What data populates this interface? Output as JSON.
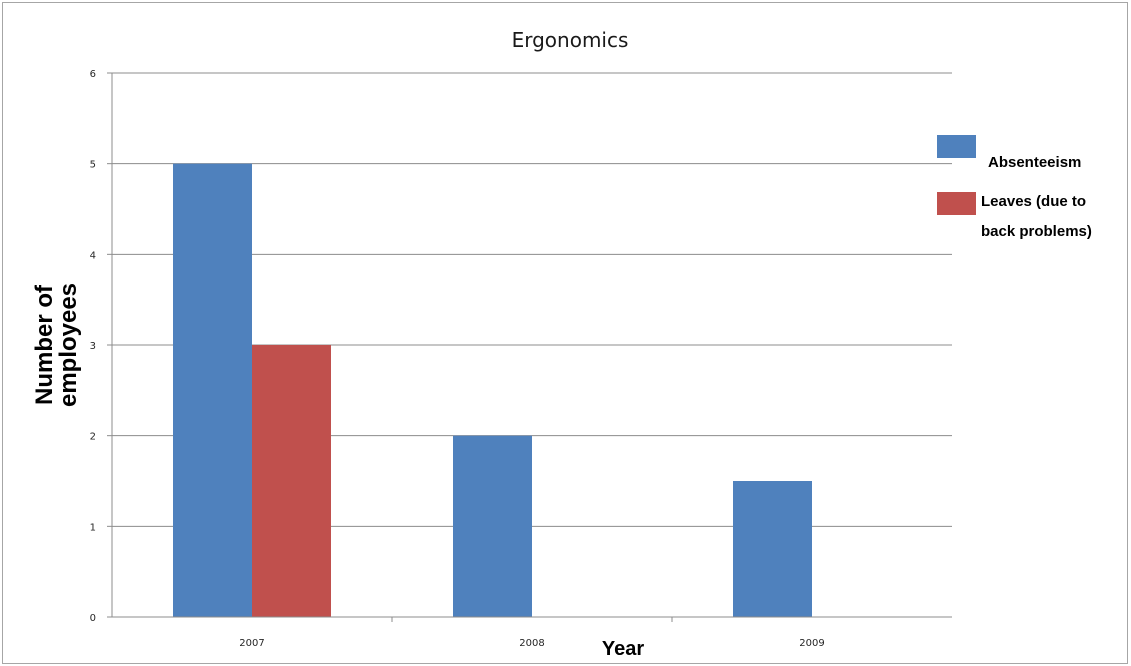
{
  "chart_data": {
    "type": "bar",
    "title": "Ergonomics",
    "xlabel": "Year",
    "ylabel_lines": [
      "Number of",
      "employees"
    ],
    "categories": [
      "2007",
      "2008",
      "2009"
    ],
    "series": [
      {
        "name": "Absenteeism",
        "values": [
          5,
          2,
          1.5
        ],
        "color": "#4f81bd"
      },
      {
        "name": "Leaves (due to back problems)",
        "legend_lines": [
          "Leaves (due to",
          "back problems)"
        ],
        "values": [
          3,
          0,
          0
        ],
        "color": "#c0504d"
      }
    ],
    "ylim": [
      0,
      6
    ],
    "yticks": [
      "0",
      "1",
      "2",
      "3",
      "4",
      "5",
      "6"
    ],
    "grid": true,
    "legend_position": "right"
  }
}
